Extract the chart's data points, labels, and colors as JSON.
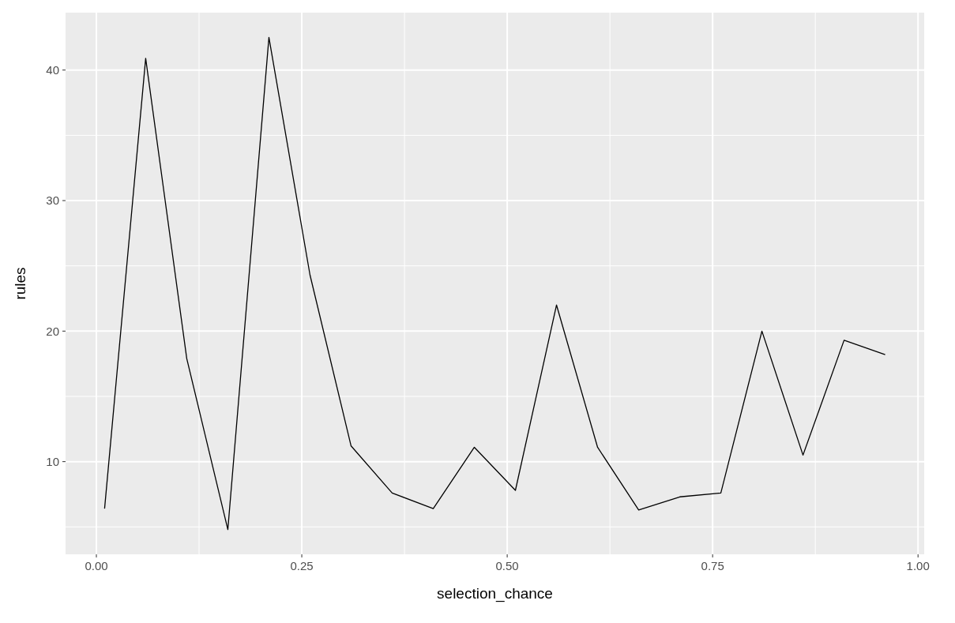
{
  "chart_data": {
    "type": "line",
    "xlabel": "selection_chance",
    "ylabel": "rules",
    "x": [
      0.01,
      0.06,
      0.11,
      0.16,
      0.21,
      0.26,
      0.31,
      0.36,
      0.41,
      0.46,
      0.51,
      0.56,
      0.61,
      0.66,
      0.71,
      0.76,
      0.81,
      0.86,
      0.91,
      0.96
    ],
    "series": [
      {
        "color": "#000000",
        "values": [
          6.4,
          40.9,
          17.9,
          4.8,
          42.5,
          24.3,
          11.2,
          7.6,
          6.4,
          11.1,
          7.8,
          22.0,
          11.1,
          6.3,
          7.3,
          7.6,
          20.0,
          10.5,
          19.3,
          18.2
        ]
      }
    ],
    "xlim": [
      -0.0375,
      1.0075
    ],
    "ylim": [
      2.9,
      44.4
    ],
    "xticks": [
      {
        "value": 0,
        "label": "0.00"
      },
      {
        "value": 0.125,
        "label": null
      },
      {
        "value": 0.25,
        "label": "0.25"
      },
      {
        "value": 0.375,
        "label": null
      },
      {
        "value": 0.5,
        "label": "0.50"
      },
      {
        "value": 0.625,
        "label": null
      },
      {
        "value": 0.75,
        "label": "0.75"
      },
      {
        "value": 0.875,
        "label": null
      },
      {
        "value": 1,
        "label": "1.00"
      }
    ],
    "yticks": [
      {
        "value": 5,
        "label": null
      },
      10,
      {
        "value": 15,
        "label": null
      },
      20,
      {
        "value": 25,
        "label": null
      },
      30,
      {
        "value": 35,
        "label": null
      },
      40
    ],
    "grid": true,
    "marker": "none",
    "line_style": "solid"
  }
}
